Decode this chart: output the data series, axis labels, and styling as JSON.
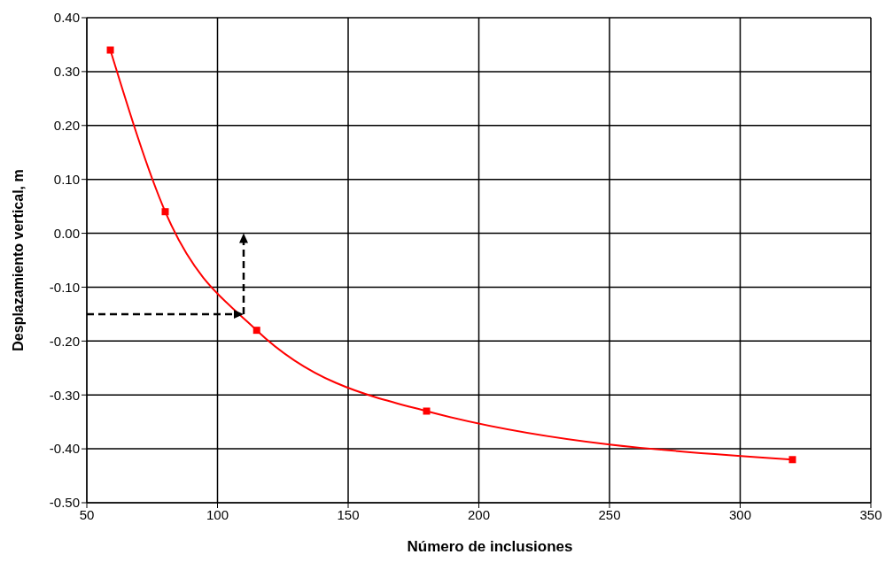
{
  "chart_data": {
    "type": "line",
    "xlabel": "Número de inclusiones",
    "ylabel": "Desplazamiento vertical, m",
    "xlim": [
      50,
      350
    ],
    "xticks": [
      50,
      100,
      150,
      200,
      250,
      300,
      350
    ],
    "ylim": [
      -0.5,
      0.4
    ],
    "yticks": [
      {
        "value": -0.5,
        "label": "-0.50"
      },
      {
        "value": -0.4,
        "label": "-0.40"
      },
      {
        "value": -0.3,
        "label": "-0.30"
      },
      {
        "value": -0.2,
        "label": "-0.20"
      },
      {
        "value": -0.1,
        "label": "-0.10"
      },
      {
        "value": 0,
        "label": "0.00"
      },
      {
        "value": 0.1,
        "label": "0.10"
      },
      {
        "value": 0.2,
        "label": "0.20"
      },
      {
        "value": 0.3,
        "label": "0.30"
      },
      {
        "value": 0.4,
        "label": "0.40"
      }
    ],
    "grid": true,
    "marker": "square",
    "line_style": "solid",
    "series": [
      {
        "color": "#ff0000",
        "x": [
          59,
          80,
          115,
          180,
          320
        ],
        "values": [
          0.34,
          0.04,
          -0.18,
          -0.33,
          -0.42
        ]
      }
    ]
  }
}
